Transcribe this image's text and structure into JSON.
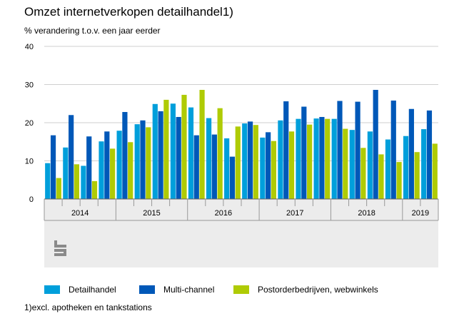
{
  "chart_data": {
    "type": "bar",
    "title": "Omzet internetverkopen detailhandel1)",
    "subtitle": "% verandering t.o.v. een jaar eerder",
    "footnote": "1)excl. apotheken en tankstations",
    "ylim": [
      0,
      40
    ],
    "yticks": [
      0,
      10,
      20,
      30,
      40
    ],
    "grid": true,
    "legend_position": "bottom",
    "years": [
      {
        "label": "2014",
        "count": 4
      },
      {
        "label": "2015",
        "count": 4
      },
      {
        "label": "2016",
        "count": 4
      },
      {
        "label": "2017",
        "count": 4
      },
      {
        "label": "2018",
        "count": 4
      },
      {
        "label": "2019",
        "count": 2
      }
    ],
    "categories": [
      "2014 K1",
      "2014 K2",
      "2014 K3",
      "2014 K4",
      "2015 K1",
      "2015 K2",
      "2015 K3",
      "2015 K4",
      "2016 K1",
      "2016 K2",
      "2016 K3",
      "2016 K4",
      "2017 K1",
      "2017 K2",
      "2017 K3",
      "2017 K4",
      "2018 K1",
      "2018 K2",
      "2018 K3",
      "2018 K4",
      "2019 K1",
      "2019 K2"
    ],
    "series": [
      {
        "name": "Detailhandel",
        "color": "#009fdb",
        "values": [
          9.4,
          13.5,
          8.7,
          15.1,
          17.9,
          19.6,
          24.9,
          25.0,
          24.0,
          21.2,
          15.9,
          19.8,
          16.1,
          20.6,
          21.0,
          21.1,
          21.0,
          18.1,
          17.7,
          15.6,
          16.5,
          18.3
        ]
      },
      {
        "name": "Multi-channel",
        "color": "#0058b8",
        "values": [
          16.7,
          22.0,
          16.4,
          17.7,
          22.8,
          20.6,
          23.0,
          21.5,
          16.7,
          16.9,
          11.1,
          20.3,
          17.5,
          25.6,
          24.2,
          21.5,
          25.7,
          25.5,
          28.6,
          25.8,
          23.6,
          23.2
        ]
      },
      {
        "name": "Postorderbedrijven, webwinkels",
        "color": "#afcb05",
        "values": [
          5.5,
          9.1,
          4.7,
          13.2,
          14.9,
          18.8,
          26.0,
          27.3,
          28.6,
          23.8,
          19.0,
          19.4,
          15.2,
          17.7,
          19.5,
          21.0,
          18.4,
          13.4,
          11.7,
          9.7,
          12.3,
          14.5
        ]
      }
    ]
  }
}
